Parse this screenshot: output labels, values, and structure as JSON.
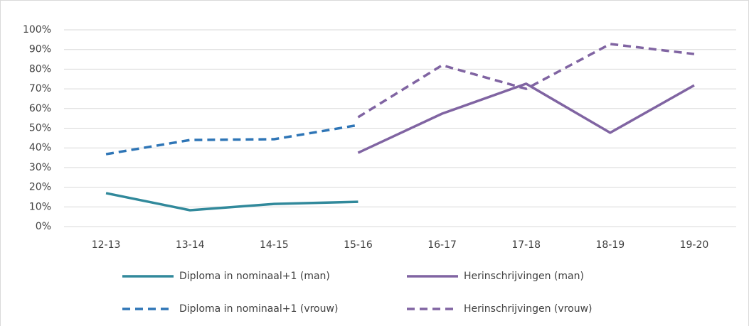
{
  "chart_data": {
    "type": "line",
    "categories": [
      "12-13",
      "13-14",
      "14-15",
      "15-16",
      "16-17",
      "17-18",
      "18-19",
      "19-20"
    ],
    "series": [
      {
        "name": "Diploma in nominaal+1 (man)",
        "color": "#31899b",
        "dashed": false,
        "values": [
          17,
          8.3,
          11.5,
          12.6,
          null,
          null,
          null,
          null
        ]
      },
      {
        "name": "Herinschrijvingen (man)",
        "color": "#8064a2",
        "dashed": false,
        "values": [
          null,
          null,
          null,
          37.5,
          57.4,
          72.6,
          47.7,
          71.8
        ]
      },
      {
        "name": "Diploma in nominaal+1 (vrouw)",
        "color": "#2e75b6",
        "dashed": true,
        "values": [
          36.8,
          44,
          44.4,
          51.6,
          null,
          null,
          null,
          null
        ]
      },
      {
        "name": "Herinschrijvingen (vrouw)",
        "color": "#8064a2",
        "dashed": true,
        "values": [
          null,
          null,
          null,
          55.6,
          82,
          70,
          92.8,
          87.7
        ]
      }
    ],
    "ylim": [
      0,
      100
    ],
    "yticks": [
      {
        "value": 0,
        "label": "0%"
      },
      {
        "value": 10,
        "label": "10%"
      },
      {
        "value": 20,
        "label": "20%"
      },
      {
        "value": 30,
        "label": "30%"
      },
      {
        "value": 40,
        "label": "40%"
      },
      {
        "value": 50,
        "label": "50%"
      },
      {
        "value": 60,
        "label": "60%"
      },
      {
        "value": 70,
        "label": "70%"
      },
      {
        "value": 80,
        "label": "80%"
      },
      {
        "value": 90,
        "label": "90%"
      },
      {
        "value": 100,
        "label": "100%"
      }
    ],
    "grid": true,
    "legend": "bottom"
  }
}
